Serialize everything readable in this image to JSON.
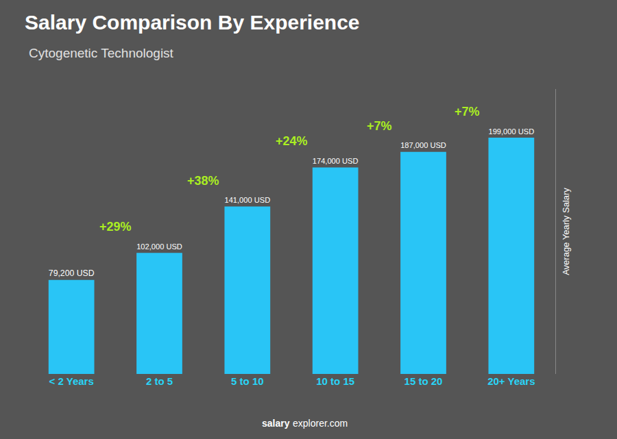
{
  "chart_data": {
    "type": "bar",
    "title": "Salary Comparison By Experience",
    "subtitle": "Cytogenetic Technologist",
    "categories": [
      "< 2 Years",
      "2 to 5",
      "5 to 10",
      "10 to 15",
      "15 to 20",
      "20+ Years"
    ],
    "values": [
      79200,
      102000,
      141000,
      174000,
      187000,
      199000
    ],
    "value_labels": [
      "79,200 USD",
      "102,000 USD",
      "141,000 USD",
      "174,000 USD",
      "187,000 USD",
      "199,000 USD"
    ],
    "data_labels": true,
    "annotations": [
      "+29%",
      "+38%",
      "+24%",
      "+7%",
      "+7%"
    ],
    "ylabel": "Average Yearly Salary",
    "footer": [
      "salary",
      "explorer.com"
    ],
    "color": "#29c5f6",
    "ylim": [
      0,
      240000
    ],
    "grid": false,
    "tick_labels": "x"
  }
}
